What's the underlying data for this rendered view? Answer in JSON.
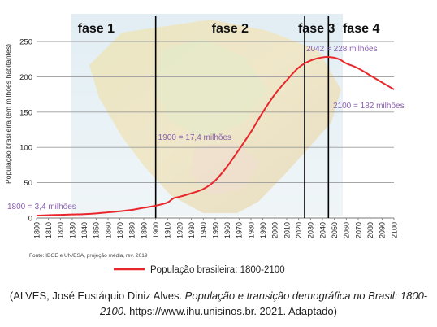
{
  "chart_data": {
    "type": "line",
    "ylabel": "População brasileira (em milhões habitantes)",
    "ylim": [
      0,
      250
    ],
    "yticks": [
      0,
      50,
      100,
      150,
      200,
      250
    ],
    "xlim": [
      1800,
      2100
    ],
    "xticks": [
      1800,
      1810,
      1820,
      1830,
      1840,
      1850,
      1860,
      1870,
      1880,
      1890,
      1900,
      1910,
      1920,
      1930,
      1940,
      1950,
      1960,
      1970,
      1980,
      1990,
      2000,
      2010,
      2020,
      2030,
      2040,
      2050,
      2060,
      2070,
      2080,
      2090,
      2100
    ],
    "grid": true,
    "series": [
      {
        "name": "População brasileira: 1800-2100",
        "color": "#e8262b",
        "x": [
          1800,
          1810,
          1820,
          1830,
          1840,
          1850,
          1860,
          1870,
          1880,
          1890,
          1900,
          1910,
          1915,
          1920,
          1930,
          1940,
          1950,
          1960,
          1970,
          1980,
          1990,
          2000,
          2010,
          2020,
          2030,
          2042,
          2050,
          2055,
          2060,
          2070,
          2080,
          2090,
          2100
        ],
        "y": [
          3.4,
          4.0,
          4.5,
          5.0,
          5.5,
          6.5,
          8.0,
          9.5,
          11.5,
          14.5,
          17.4,
          22.0,
          28.0,
          30.0,
          35.0,
          41.0,
          53.0,
          73.0,
          97.0,
          122.0,
          150.0,
          175.0,
          195.0,
          213.0,
          223.0,
          228.0,
          227.0,
          224.0,
          219.0,
          212.0,
          202.0,
          192.0,
          182.0
        ]
      }
    ],
    "phases": [
      {
        "label": "fase 1",
        "start": 1800,
        "end": 1900
      },
      {
        "label": "fase 2",
        "start": 1900,
        "end": 2025
      },
      {
        "label": "fase 3",
        "start": 2025,
        "end": 2045
      },
      {
        "label": "fase 4",
        "start": 2045,
        "end": 2100
      }
    ],
    "annotations": [
      {
        "text": "1800 = 3,4 milhões",
        "x": 1800,
        "y": 3.4
      },
      {
        "text": "1900 = 17,4 milhões",
        "x": 1900,
        "y": 17.4
      },
      {
        "text": "2042 = 228 milhões",
        "x": 2042,
        "y": 228
      },
      {
        "text": "2100 = 182 milhões",
        "x": 2100,
        "y": 182
      }
    ],
    "annotation_color": "#8a5fb0",
    "legend_position": "bottom",
    "source_note": "Fonte: IBGE e UN/ESA, projeção média, rev. 2019"
  },
  "citation": {
    "prefix": "(ALVES, José Eustáquio Diniz Alves. ",
    "title": "População e transição demográfica no Brasil: 1800-2100",
    "suffix": ". https://www.ihu.unisinos.br. 2021. Adaptado)"
  }
}
